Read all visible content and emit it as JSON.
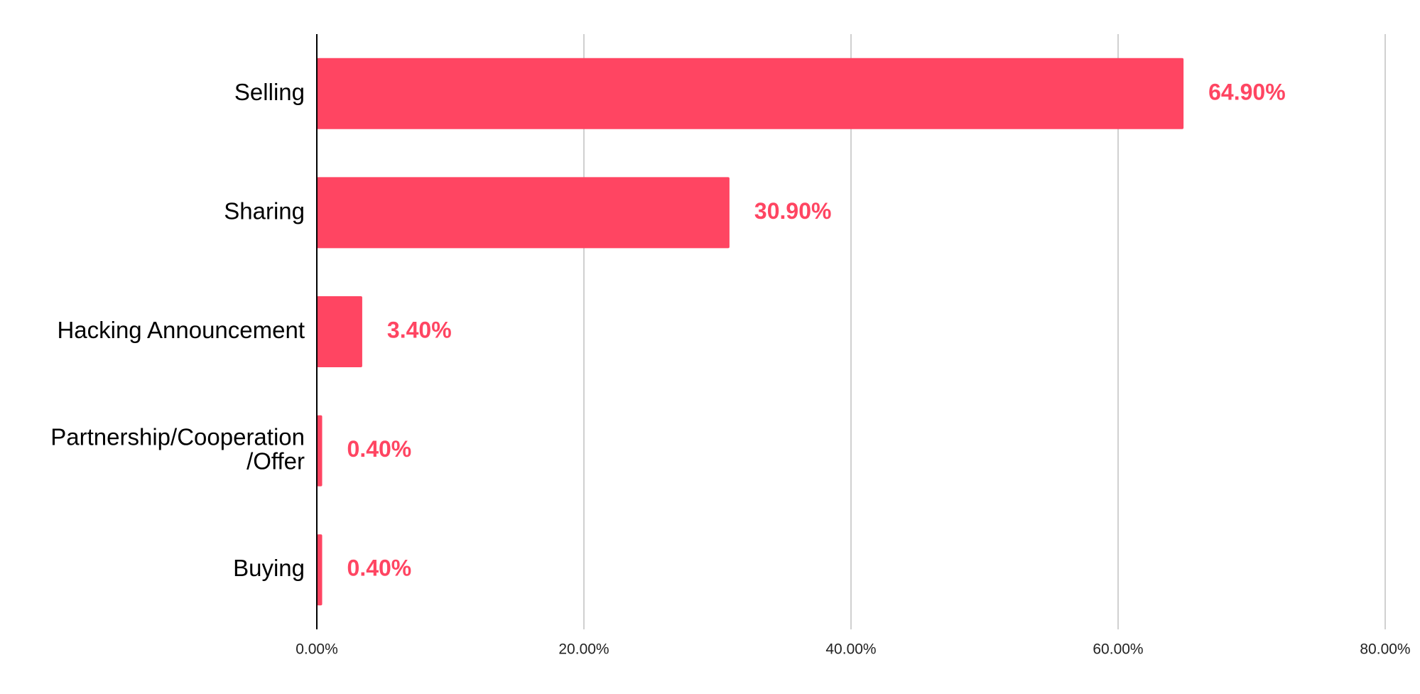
{
  "chart_data": {
    "type": "hbar",
    "categories": [
      "Selling",
      "Sharing",
      "Hacking Announcement",
      "Partnership/Cooperation\n/Offer",
      "Buying"
    ],
    "values": [
      64.9,
      30.9,
      3.4,
      0.4,
      0.4
    ],
    "value_labels": [
      "64.90%",
      "30.90%",
      "3.40%",
      "0.40%",
      "0.40%"
    ],
    "color": "#ff4562",
    "xlim": [
      0,
      80
    ],
    "xticks": [
      {
        "value": 0,
        "label": "0.00%"
      },
      {
        "value": 20,
        "label": "20.00%"
      },
      {
        "value": 40,
        "label": "40.00%"
      },
      {
        "value": 60,
        "label": "60.00%"
      },
      {
        "value": 80,
        "label": "80.00%"
      }
    ],
    "grid": true
  }
}
